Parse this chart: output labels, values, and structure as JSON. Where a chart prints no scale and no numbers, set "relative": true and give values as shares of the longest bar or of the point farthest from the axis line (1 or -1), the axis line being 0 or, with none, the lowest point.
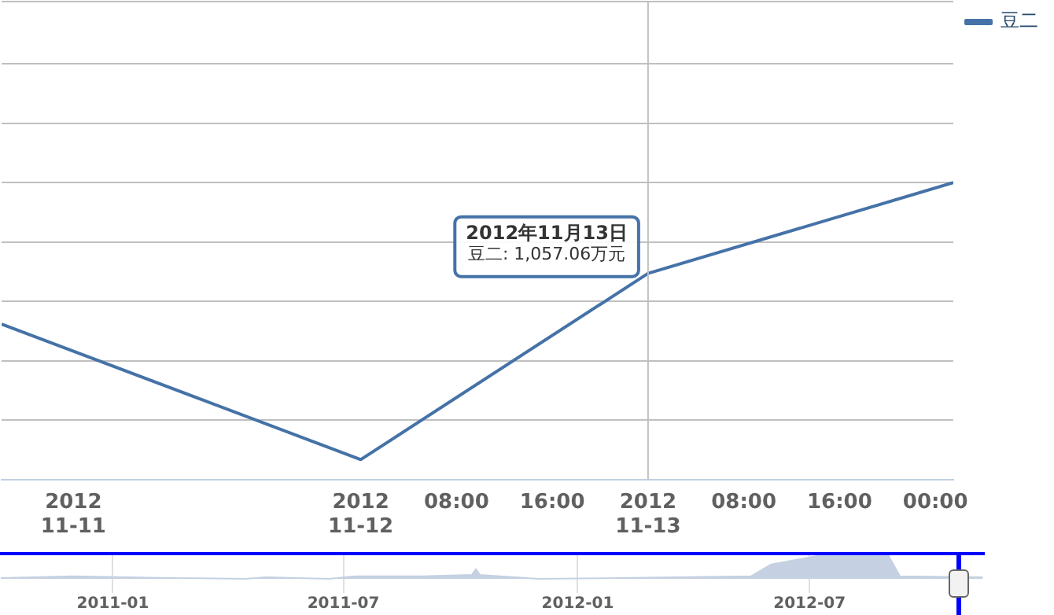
{
  "chart_data": [
    {
      "type": "line",
      "relative": true,
      "x": [
        "2012-11-10T18:00",
        "2012-11-12",
        "2012-11-13",
        "2012-11-14T01:30"
      ],
      "series": [
        {
          "name": "豆二",
          "color": "#4572a7",
          "values": [
            0.523,
            0.067,
            0.694,
            1
          ]
        }
      ],
      "xlim": [
        "2012-11-10T18:00",
        "2012-11-14T01:30"
      ],
      "xticks": [
        {
          "value": "2012-11-11",
          "label": "2012\n11-11"
        },
        {
          "value": "2012-11-12",
          "label": "2012\n11-12"
        },
        {
          "value": "2012-11-12T08:00",
          "label": "08:00"
        },
        {
          "value": "2012-11-12T16:00",
          "label": "16:00"
        },
        {
          "value": "2012-11-13",
          "label": "2012\n11-13"
        },
        {
          "value": "2012-11-13T08:00",
          "label": "08:00"
        },
        {
          "value": "2012-11-13T16:00",
          "label": "16:00"
        },
        {
          "value": "2012-11-14",
          "label": "00:00"
        }
      ],
      "grid": "y",
      "legend": "top right",
      "ref_lines": [
        {
          "axis": "x",
          "value": "2012-11-13",
          "color": "#c0c0c0"
        }
      ],
      "annotations": [
        {
          "text": "2012年11月13日",
          "x": "2012-11-13",
          "y": 0.694
        },
        {
          "text": "豆二: 1,057.06万元",
          "x": "2012-11-13",
          "y": 0.694
        }
      ]
    },
    {
      "type": "area",
      "relative": true,
      "x": [
        "2010-10-05",
        "2010-12-01",
        "2011-02-15",
        "2011-04-15",
        "2011-05-01",
        "2011-06-20",
        "2011-07-10",
        "2011-09-01",
        "2011-10-10",
        "2011-10-13",
        "2011-10-16",
        "2011-12-01",
        "2012-02-01",
        "2012-05-16",
        "2012-06-01",
        "2012-07-15",
        "2012-08-25",
        "2012-09-01",
        "2012-09-10",
        "2012-11-14"
      ],
      "series": [
        {
          "color": "#c5d1e2",
          "values": [
            0.03,
            0.1,
            0.03,
            0,
            0.06,
            0,
            0.1,
            0.1,
            0.16,
            0.39,
            0.16,
            0,
            0.03,
            0.1,
            0.58,
            1,
            1,
            0.94,
            0.1,
            0.06
          ]
        }
      ],
      "xlim": [
        "2010-10-05",
        "2012-11-15"
      ],
      "xticks": [
        "2011-01",
        "2011-07",
        "2012-01",
        "2012-07"
      ],
      "grid": "x"
    }
  ]
}
